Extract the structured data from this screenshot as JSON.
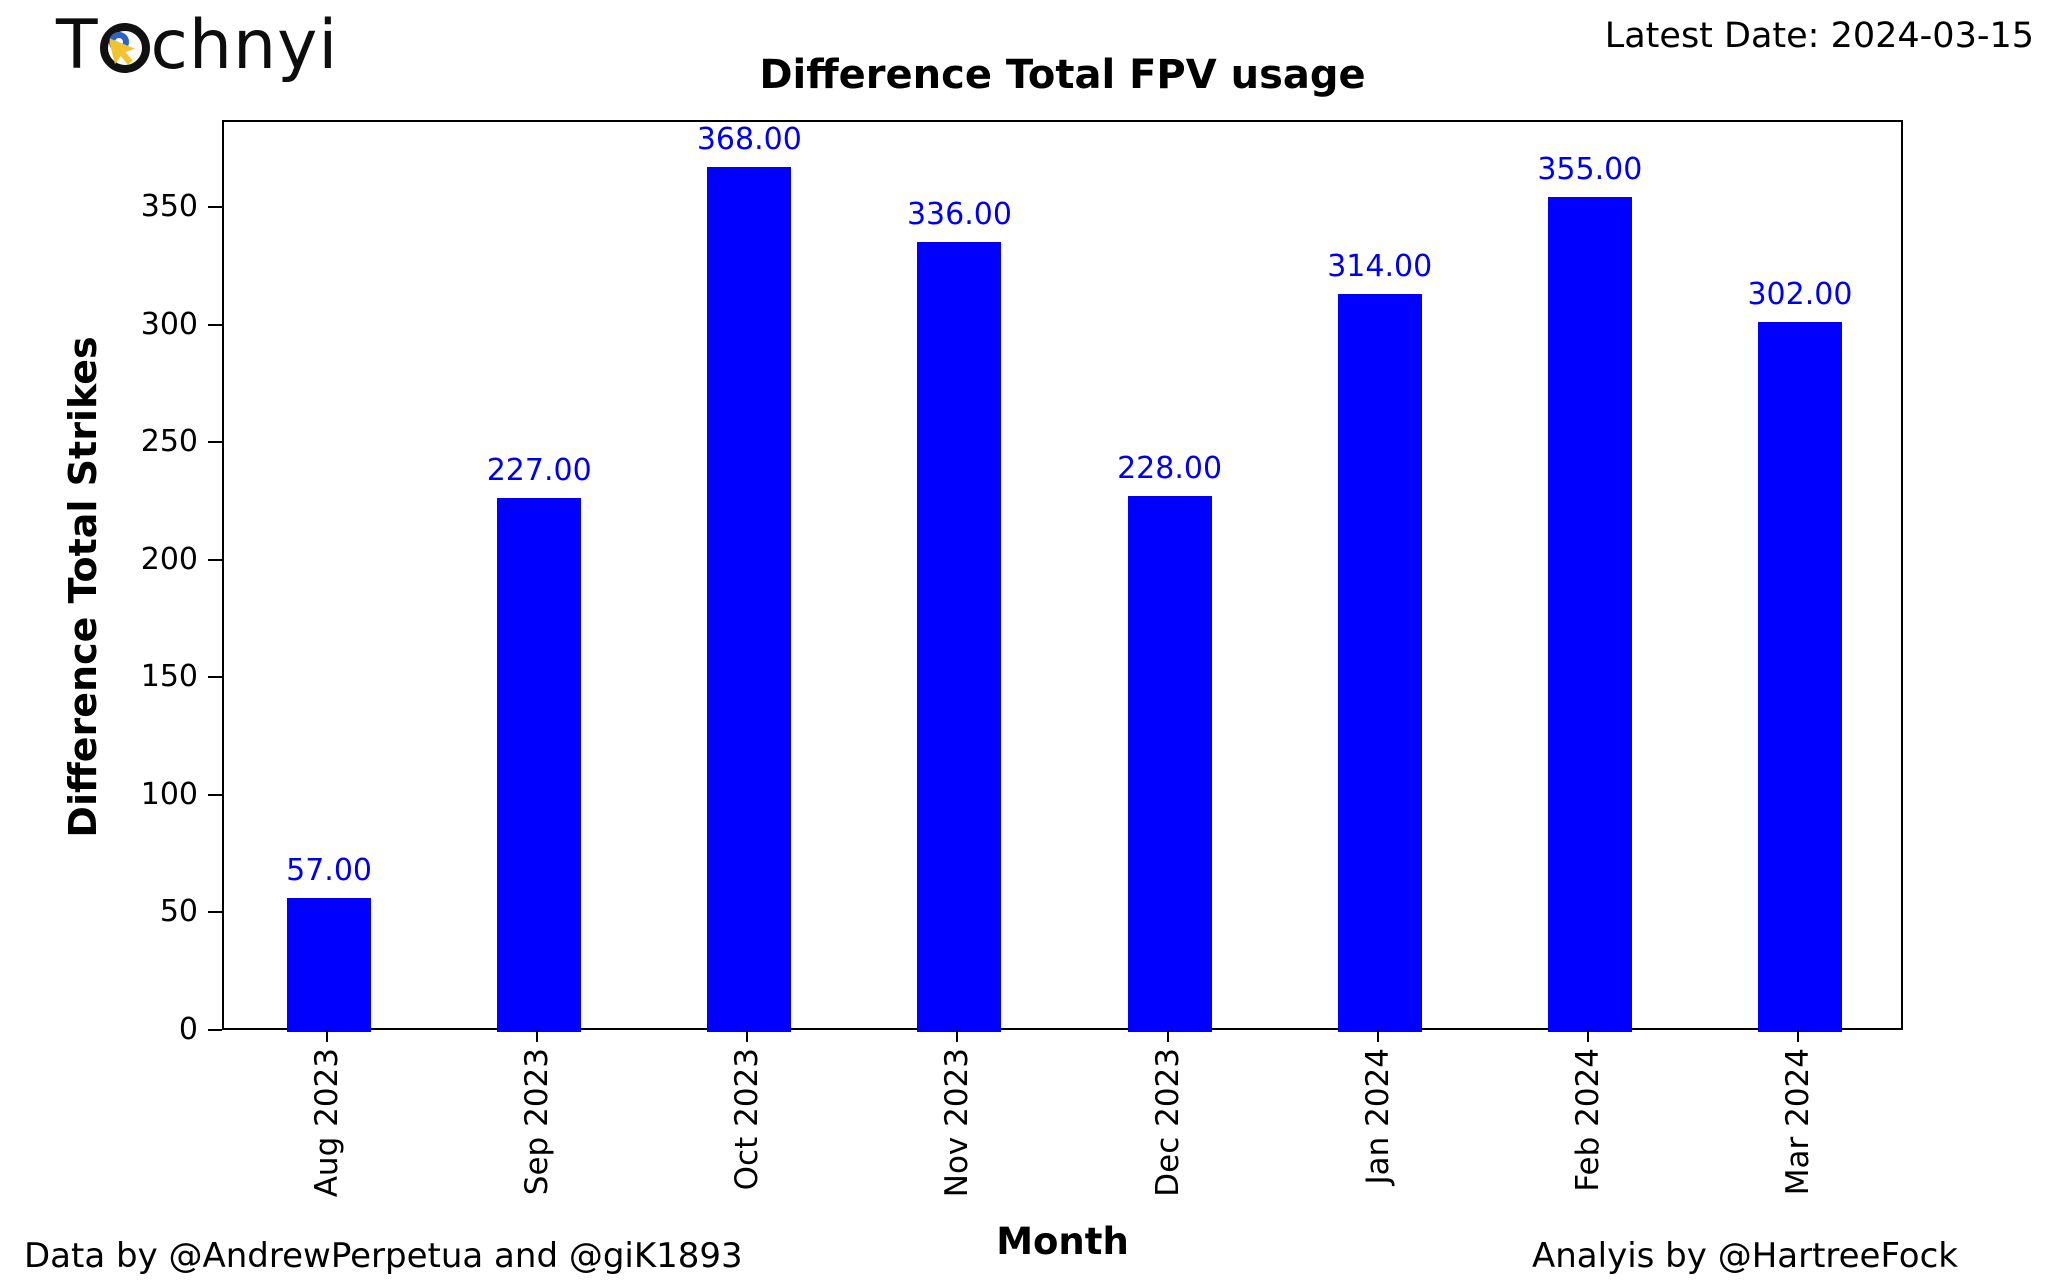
{
  "header": {
    "logo_prefix": "T",
    "logo_suffix": "chnyi",
    "latest_date": "Latest Date: 2024-03-15"
  },
  "chart_data": {
    "type": "bar",
    "title": "Difference Total FPV usage",
    "xlabel": "Month",
    "ylabel": "Difference Total Strikes",
    "categories": [
      "Aug 2023",
      "Sep 2023",
      "Oct 2023",
      "Nov 2023",
      "Dec 2023",
      "Jan 2024",
      "Feb 2024",
      "Mar 2024"
    ],
    "values": [
      57,
      227,
      368,
      336,
      228,
      314,
      355,
      302
    ],
    "value_labels": [
      "57.00",
      "227.00",
      "368.00",
      "336.00",
      "228.00",
      "314.00",
      "355.00",
      "302.00"
    ],
    "yticks": [
      0,
      50,
      100,
      150,
      200,
      250,
      300,
      350
    ],
    "ylim": [
      0,
      387
    ],
    "grid": false,
    "legend": null,
    "x_tick_rotation_deg": 90,
    "bar_color": "#0000ff",
    "value_label_color": "#0000ee"
  },
  "footer": {
    "left": "Data by @AndrewPerpetua and @giK1893",
    "right": "Analyis by @HartreeFock"
  }
}
